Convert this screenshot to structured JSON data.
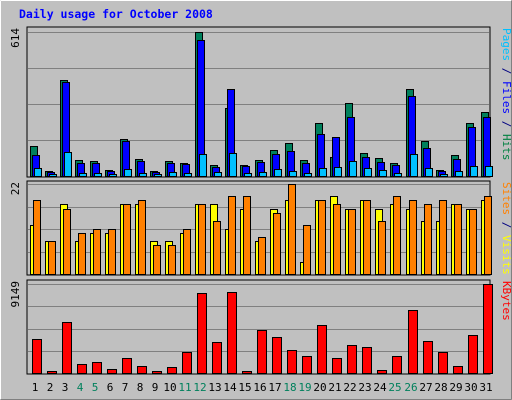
{
  "chart_data": {
    "type": "bar",
    "title": "Daily usage for October 2008",
    "categories": [
      "1",
      "2",
      "3",
      "4",
      "5",
      "6",
      "7",
      "8",
      "9",
      "10",
      "11",
      "12",
      "13",
      "14",
      "15",
      "16",
      "17",
      "18",
      "19",
      "20",
      "21",
      "22",
      "23",
      "24",
      "25",
      "26",
      "27",
      "28",
      "29",
      "30",
      "31"
    ],
    "weekend_days": [
      "4",
      "5",
      "11",
      "12",
      "18",
      "19",
      "25",
      "26"
    ],
    "panels": [
      {
        "id": "top",
        "max_label": "614",
        "ymax": 614,
        "legend": [
          {
            "text": "Pages",
            "color": "#00c0ff"
          },
          {
            "text": " / ",
            "color": "#000080"
          },
          {
            "text": "Files",
            "color": "#0000ff"
          },
          {
            "text": " / ",
            "color": "#000080"
          },
          {
            "text": "Hits",
            "color": "#008040"
          }
        ],
        "series": [
          {
            "name": "Hits",
            "color": "#00805c",
            "values": [
              128,
              22,
              409,
              67,
              64,
              27,
              157,
              72,
              20,
              65,
              57,
              614,
              46,
              291,
              48,
              69,
              111,
              141,
              70,
              226,
              79,
              312,
              96,
              78,
              57,
              370,
              148,
              24,
              89,
              226,
              273
            ]
          },
          {
            "name": "Files",
            "color": "#0000ff",
            "values": [
              90,
              16,
              400,
              57,
              55,
              23,
              150,
              62,
              16,
              57,
              50,
              580,
              40,
              370,
              42,
              58,
              95,
              108,
              55,
              180,
              168,
              250,
              80,
              60,
              45,
              342,
              120,
              20,
              73,
              208,
              250
            ]
          },
          {
            "name": "Pages",
            "color": "#00c0ff",
            "values": [
              33,
              8,
              102,
              14,
              13,
              10,
              30,
              14,
              9,
              17,
              13,
              92,
              15,
              100,
              12,
              16,
              28,
              22,
              14,
              36,
              37,
              62,
              35,
              25,
              14,
              95,
              32,
              10,
              22,
              42,
              44
            ]
          }
        ]
      },
      {
        "id": "middle",
        "max_label": "22",
        "ymax": 22,
        "legend": [
          {
            "text": "Sites",
            "color": "#ff8000"
          },
          {
            "text": " / ",
            "color": "#000080"
          },
          {
            "text": "Visits",
            "color": "#ffff00"
          }
        ],
        "series": [
          {
            "name": "Visits",
            "color": "#ffff00",
            "values": [
              12,
              8,
              17,
              8,
              10,
              10,
              17,
              17,
              8,
              8,
              10,
              17,
              17,
              11,
              16,
              8,
              16,
              18,
              3,
              18,
              19,
              16,
              18,
              16,
              17,
              16,
              13,
              13,
              17,
              16,
              18
            ]
          },
          {
            "name": "Sites",
            "color": "#ff8000",
            "values": [
              18,
              8,
              16,
              10,
              11,
              11,
              17,
              18,
              7,
              7,
              11,
              17,
              13,
              19,
              19,
              9,
              15,
              22,
              12,
              18,
              17,
              16,
              18,
              13,
              19,
              18,
              17,
              18,
              17,
              16,
              19
            ]
          }
        ]
      },
      {
        "id": "bottom",
        "max_label": "9149",
        "ymax": 9149,
        "legend": [
          {
            "text": "KBytes",
            "color": "#ff0000"
          }
        ],
        "series": [
          {
            "name": "KBytes",
            "color": "#ff0000",
            "values": [
              3480,
              200,
              5257,
              950,
              1100,
              400,
              1500,
              680,
              160,
              580,
              2130,
              8225,
              3180,
              8282,
              210,
              4400,
              3750,
              2390,
              1790,
              4960,
              1590,
              2830,
              2670,
              320,
              1790,
              6440,
              3240,
              2200,
              720,
              3870,
              9149
            ]
          }
        ]
      }
    ]
  }
}
